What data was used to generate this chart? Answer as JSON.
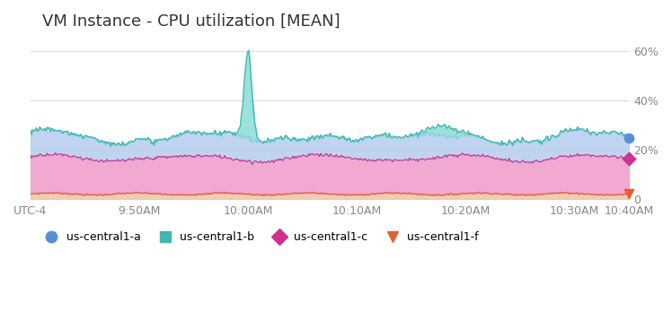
{
  "title": "VM Instance - CPU utilization [MEAN]",
  "title_fontsize": 13,
  "title_color": "#333333",
  "background_color": "#ffffff",
  "plot_bg_color": "#ffffff",
  "ylim": [
    -1,
    65
  ],
  "yticks": [
    0,
    20,
    40,
    60
  ],
  "ytick_labels": [
    "0",
    "20%",
    "40%",
    "60%"
  ],
  "xtick_positions": [
    0,
    10,
    20,
    30,
    40,
    50,
    55
  ],
  "xtick_labels": [
    "UTC-4",
    "9:50AM",
    "10:00AM",
    "10:10AM",
    "10:20AM",
    "10:30AM",
    "10:40AM"
  ],
  "grid_color": "#dddddd",
  "series_a_color": "#5b8fd4",
  "series_a_fill": "#b8cff0",
  "series_b_color": "#40b8b0",
  "series_b_fill": "#90ddd8",
  "series_c_color": "#d03090",
  "series_c_fill": "#f0a0cc",
  "series_f_color": "#e06030",
  "series_f_fill": "#f0c8a8",
  "legend_labels": [
    "us-central1-a",
    "us-central1-b",
    "us-central1-c",
    "us-central1-f"
  ],
  "legend_colors": [
    "#5b8fd4",
    "#40b8b0",
    "#d03090",
    "#e06030"
  ],
  "legend_markers": [
    "o",
    "s",
    "D",
    "v"
  ]
}
